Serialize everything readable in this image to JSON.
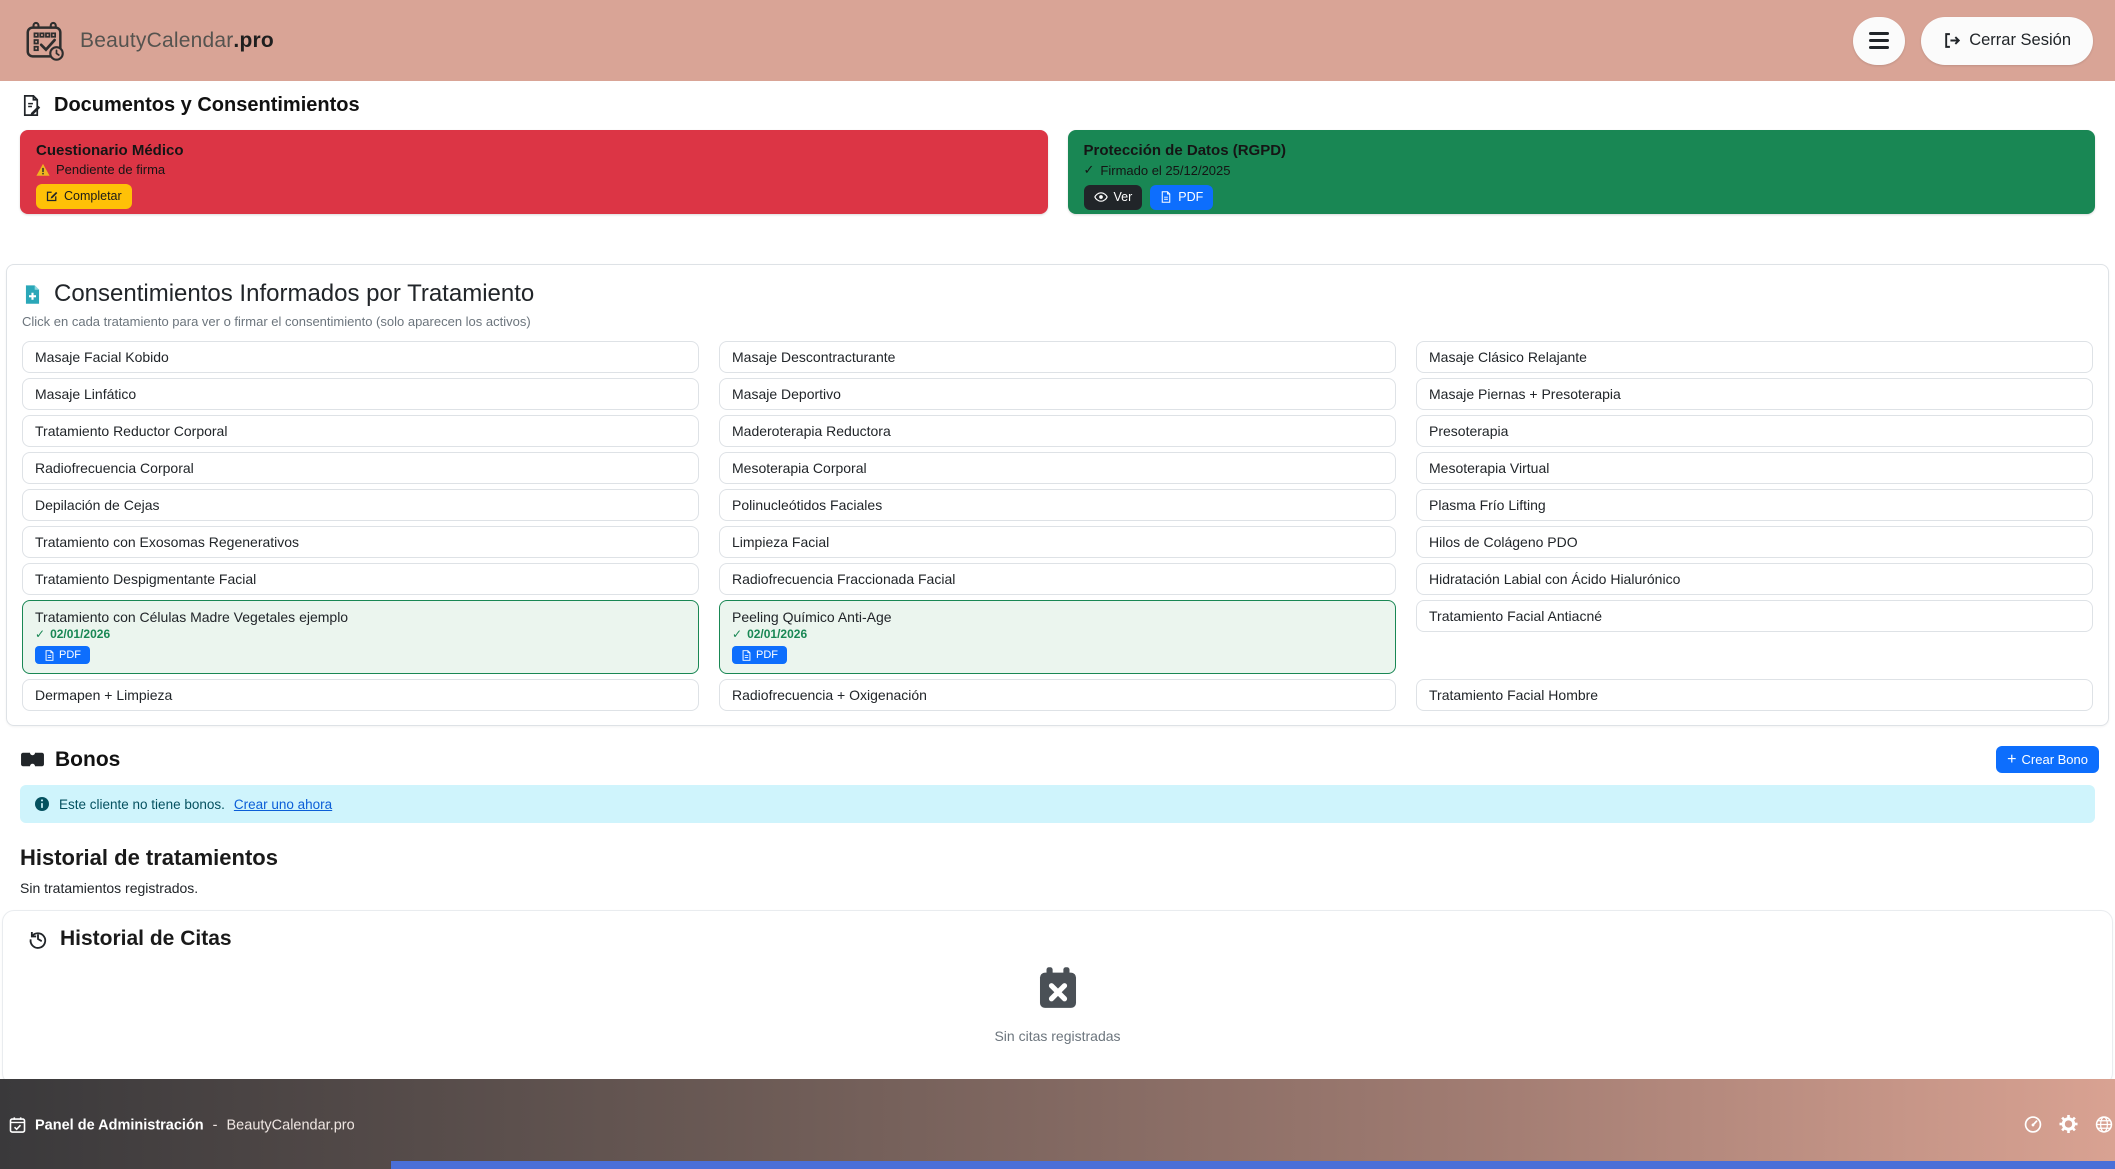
{
  "header": {
    "brand": "BeautyCalendar",
    "brand_suffix": ".pro",
    "logout_label": "Cerrar Sesión"
  },
  "documents": {
    "title": "Documentos y Consentimientos",
    "medical": {
      "title": "Cuestionario Médico",
      "status": "Pendiente de firma",
      "action_label": "Completar"
    },
    "rgpd": {
      "title": "Protección de Datos (RGPD)",
      "check_glyph": "✓",
      "status": "Firmado el 25/12/2025",
      "view_label": "Ver",
      "pdf_label": "PDF"
    }
  },
  "consents": {
    "title": "Consentimientos Informados por Tratamiento",
    "subtitle": "Click en cada tratamiento para ver o firmar el consentimiento (solo aparecen los activos)",
    "pdf_label": "PDF",
    "check_glyph": "✓",
    "treatments": [
      {
        "name": "Masaje Facial Kobido"
      },
      {
        "name": "Masaje Descontracturante"
      },
      {
        "name": "Masaje Clásico Relajante"
      },
      {
        "name": "Masaje Linfático"
      },
      {
        "name": "Masaje Deportivo"
      },
      {
        "name": "Masaje Piernas + Presoterapia"
      },
      {
        "name": "Tratamiento Reductor Corporal"
      },
      {
        "name": "Maderoterapia Reductora"
      },
      {
        "name": "Presoterapia"
      },
      {
        "name": "Radiofrecuencia Corporal"
      },
      {
        "name": "Mesoterapia Corporal"
      },
      {
        "name": "Mesoterapia Virtual"
      },
      {
        "name": "Depilación de Cejas"
      },
      {
        "name": "Polinucleótidos Faciales"
      },
      {
        "name": "Plasma Frío Lifting"
      },
      {
        "name": "Tratamiento con Exosomas Regenerativos"
      },
      {
        "name": "Limpieza Facial"
      },
      {
        "name": "Hilos de Colágeno PDO"
      },
      {
        "name": "Tratamiento Despigmentante Facial"
      },
      {
        "name": "Radiofrecuencia Fraccionada Facial"
      },
      {
        "name": "Hidratación Labial con Ácido Hialurónico"
      },
      {
        "name": "Tratamiento con Células Madre Vegetales ejemplo",
        "signed": true,
        "signed_date": "02/01/2026"
      },
      {
        "name": "Peeling Químico Anti-Age",
        "signed": true,
        "signed_date": "02/01/2026"
      },
      {
        "name": "Tratamiento Facial Antiacné"
      },
      {
        "name": "Dermapen + Limpieza"
      },
      {
        "name": "Radiofrecuencia + Oxigenación"
      },
      {
        "name": "Tratamiento Facial Hombre"
      }
    ]
  },
  "bonos": {
    "title": "Bonos",
    "create_label": "Crear Bono",
    "empty_text": "Este cliente no tiene bonos.",
    "empty_link": "Crear uno ahora"
  },
  "treatment_history": {
    "title": "Historial de tratamientos",
    "empty_text": "Sin tratamientos registrados."
  },
  "appointments": {
    "title": "Historial de Citas",
    "empty_text": "Sin citas registradas"
  },
  "footer": {
    "admin_label": "Panel de Administración",
    "separator": "-",
    "brand": "BeautyCalendar.pro"
  },
  "colors": {
    "header_bg": "#d9a496",
    "danger": "#dc3545",
    "success": "#198754",
    "primary": "#0d6efd",
    "warning": "#ffc107",
    "info_bg": "#cff4fc",
    "teal_icon": "#2aa7b8",
    "footer_dark": "#3a393b",
    "footer_pink": "#d9a292",
    "bottom_bar_blue": "#4a6fd8"
  }
}
